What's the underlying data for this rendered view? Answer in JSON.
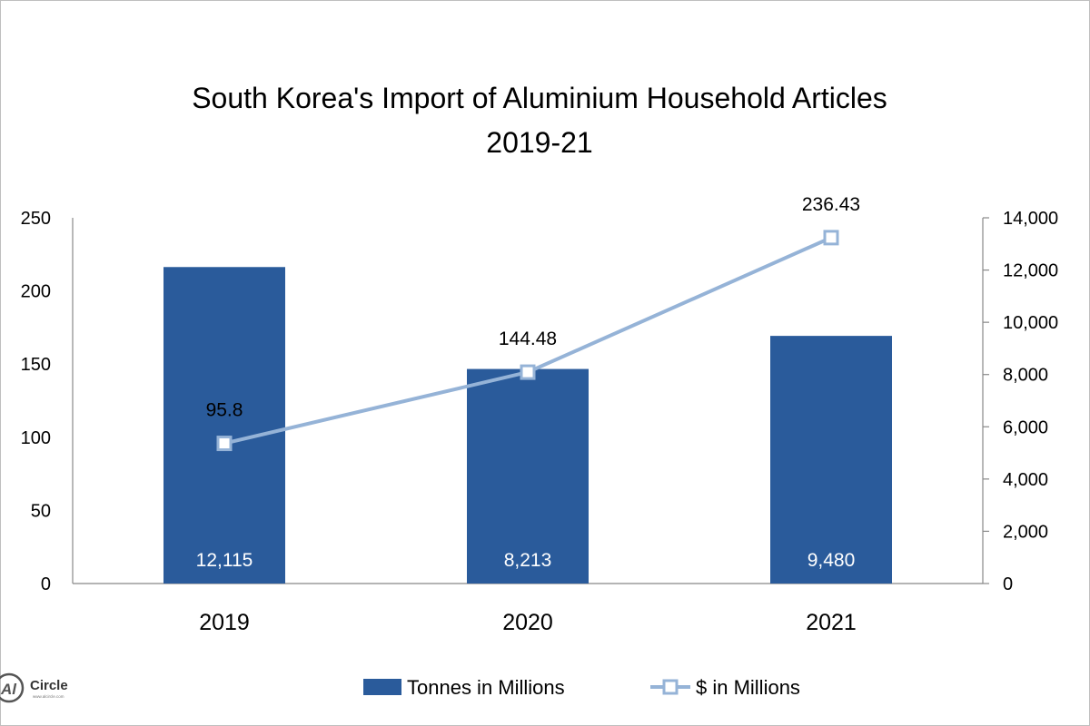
{
  "chart_data": {
    "type": "bar+line",
    "title_line1": "South Korea's Import of Aluminium Household Articles",
    "title_line2": "2019-21",
    "categories": [
      "2019",
      "2020",
      "2021"
    ],
    "series": [
      {
        "name": "Tonnes in Millions",
        "type": "bar",
        "axis": "right",
        "values": [
          12115,
          8213,
          9480
        ],
        "labels": [
          "12,115",
          "8,213",
          "9,480"
        ],
        "color": "#2a5b9b"
      },
      {
        "name": "$ in Millions",
        "type": "line",
        "axis": "left",
        "values": [
          95.8,
          144.48,
          236.43
        ],
        "labels": [
          "95.8",
          "144.48",
          "236.43"
        ],
        "color": "#95b3d7"
      }
    ],
    "left_axis": {
      "min": 0,
      "max": 250,
      "ticks": [
        "0",
        "50",
        "100",
        "150",
        "200",
        "250"
      ]
    },
    "right_axis": {
      "min": 0,
      "max": 14000,
      "ticks": [
        "0",
        "2,000",
        "4,000",
        "6,000",
        "8,000",
        "10,000",
        "12,000",
        "14,000"
      ]
    },
    "legend_position": "bottom"
  },
  "logo": {
    "text": "Circle",
    "mark": "Al",
    "sub": "www.alcircle.com"
  }
}
